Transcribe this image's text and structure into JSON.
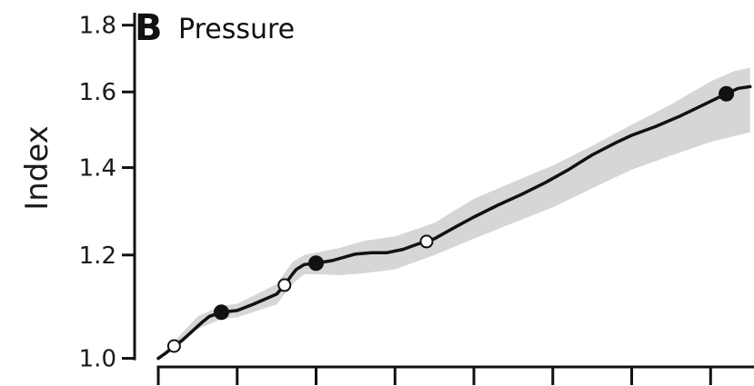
{
  "chart_data": {
    "type": "line",
    "panel_label": "B",
    "title": "Pressure",
    "ylabel": "Index",
    "xlabel": "",
    "y_scale": "log",
    "ylim": [
      0.985,
      1.84
    ],
    "y_ticks": [
      {
        "value": 1.0,
        "label": "1.0"
      },
      {
        "value": 1.2,
        "label": "1.2"
      },
      {
        "value": 1.4,
        "label": "1.4"
      },
      {
        "value": 1.6,
        "label": "1.6"
      },
      {
        "value": 1.8,
        "label": "1.8"
      }
    ],
    "x_ticks": [
      0,
      1,
      2,
      3,
      4,
      5,
      6,
      7
    ],
    "xlim": [
      -0.3,
      7.55
    ],
    "line": {
      "x": [
        0,
        0.1,
        0.3,
        0.55,
        0.65,
        0.8,
        1.0,
        1.2,
        1.5,
        1.6,
        1.7,
        1.75,
        1.85,
        2.0,
        2.2,
        2.5,
        2.7,
        2.9,
        3.1,
        3.3,
        3.5,
        3.8,
        4.0,
        4.3,
        4.6,
        4.9,
        5.2,
        5.5,
        5.8,
        6.0,
        6.3,
        6.6,
        6.9,
        7.2,
        7.35,
        7.5
      ],
      "y": [
        1.0,
        1.01,
        1.032,
        1.065,
        1.077,
        1.085,
        1.088,
        1.1,
        1.12,
        1.138,
        1.16,
        1.17,
        1.18,
        1.183,
        1.188,
        1.202,
        1.205,
        1.205,
        1.212,
        1.224,
        1.235,
        1.264,
        1.283,
        1.31,
        1.335,
        1.363,
        1.395,
        1.432,
        1.463,
        1.482,
        1.505,
        1.532,
        1.563,
        1.595,
        1.61,
        1.615
      ]
    },
    "band": {
      "x": [
        0,
        0.5,
        0.8,
        1.0,
        1.5,
        1.7,
        1.85,
        2.0,
        2.3,
        2.6,
        3.0,
        3.5,
        4.0,
        4.5,
        5.0,
        5.5,
        6.0,
        6.5,
        7.0,
        7.3,
        7.5
      ],
      "lower": [
        1.0,
        1.053,
        1.072,
        1.075,
        1.1,
        1.14,
        1.16,
        1.16,
        1.158,
        1.162,
        1.17,
        1.2,
        1.235,
        1.27,
        1.305,
        1.35,
        1.395,
        1.43,
        1.465,
        1.48,
        1.49
      ],
      "upper": [
        1.0,
        1.077,
        1.097,
        1.101,
        1.14,
        1.185,
        1.2,
        1.205,
        1.215,
        1.23,
        1.24,
        1.27,
        1.325,
        1.365,
        1.405,
        1.455,
        1.51,
        1.565,
        1.63,
        1.66,
        1.67
      ]
    },
    "markers": [
      {
        "x": 0.2,
        "y": 1.022,
        "filled": false
      },
      {
        "x": 0.8,
        "y": 1.085,
        "filled": true
      },
      {
        "x": 1.6,
        "y": 1.138,
        "filled": false
      },
      {
        "x": 2.0,
        "y": 1.183,
        "filled": true
      },
      {
        "x": 3.4,
        "y": 1.229,
        "filled": false
      },
      {
        "x": 7.2,
        "y": 1.595,
        "filled": true
      }
    ],
    "colors": {
      "line": "#111111",
      "band": "#d6d6d6",
      "axis": "#111111",
      "marker": "#111111"
    },
    "grid": false,
    "legend": "none"
  }
}
